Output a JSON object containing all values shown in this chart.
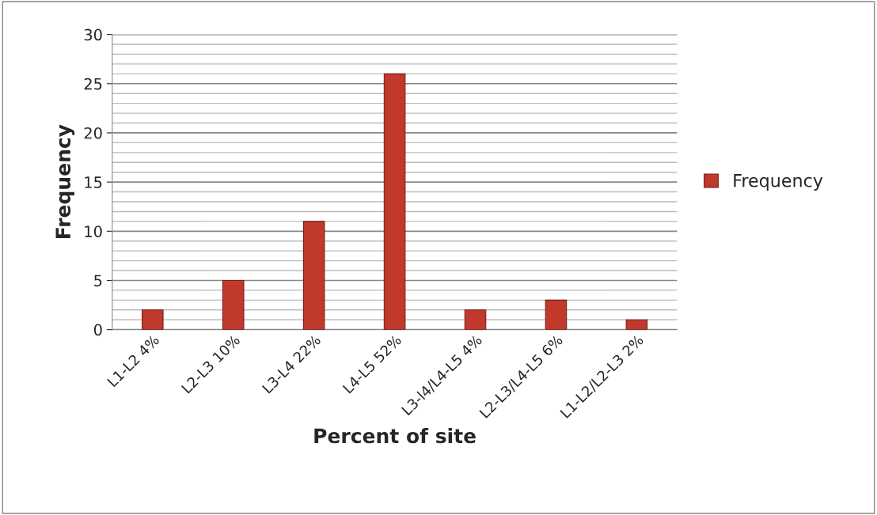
{
  "chart_data": {
    "type": "bar",
    "xlabel": "Percent of site",
    "ylabel": "Frequency",
    "categories": [
      "L1-L2 4%",
      "L2-L3 10%",
      "L3-L4 22%",
      "L4-L5 52%",
      "L3-l4/L4-L5 4%",
      "L2-L3/L4-L5 6%",
      "L1-L2/L2-L3 2%"
    ],
    "series": [
      {
        "name": "Frequency",
        "color": "#c0392b",
        "values": [
          2,
          5,
          11,
          26,
          2,
          3,
          1
        ]
      }
    ],
    "ylim": [
      0,
      30
    ],
    "yticks": [
      0,
      5,
      10,
      15,
      20,
      25,
      30
    ],
    "grid": "y",
    "legend": "right"
  }
}
